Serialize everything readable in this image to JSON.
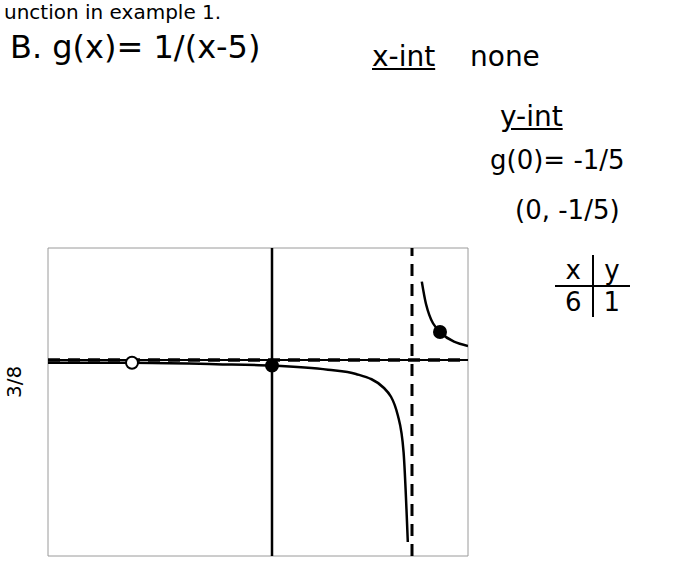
{
  "chart_data": {
    "type": "line",
    "title": "B. g(x)= 1/(x-5)",
    "header": "unction in example 1.",
    "annotations": [
      "x-int",
      "none",
      "y-int",
      "g(0)= -1/5",
      "(0, -1/5)",
      "3/8"
    ],
    "table": {
      "columns": [
        "x",
        "y"
      ],
      "rows": [
        [
          6,
          1
        ]
      ]
    },
    "xlim": [
      -8,
      7
    ],
    "ylim": [
      -7,
      4
    ],
    "xticks": [
      -8,
      -7,
      -6,
      -5,
      -4,
      -3,
      -2,
      -1,
      0,
      1,
      2,
      3,
      4,
      5,
      6,
      7
    ],
    "yticks": [
      -7,
      -6,
      -5,
      -4,
      -3,
      -2,
      -1,
      0,
      1,
      2,
      3,
      4
    ],
    "grid": true,
    "tick_labels": false,
    "asymptotes": [
      {
        "axis": "x",
        "value": 5,
        "line_style": "dashed"
      },
      {
        "axis": "y",
        "value": 0,
        "line_style": "dashed"
      }
    ],
    "series": [
      {
        "type": "line",
        "color": "#000000",
        "line_style": "solid",
        "x": [
          -8,
          -5,
          -2,
          0,
          2,
          3,
          4,
          4.5,
          4.7,
          4.85
        ],
        "values": [
          -0.1,
          -0.1,
          -0.15,
          -0.2,
          -0.35,
          -0.5,
          -1,
          -2,
          -3.3,
          -6.5
        ]
      },
      {
        "type": "line",
        "color": "#000000",
        "line_style": "solid",
        "x": [
          5.35,
          5.5,
          6,
          7
        ],
        "values": [
          2.8,
          2,
          1,
          0.5
        ]
      },
      {
        "type": "scatter",
        "color": "#000000",
        "marker": "filled circle",
        "x": [
          0,
          6
        ],
        "values": [
          -0.2,
          1
        ]
      },
      {
        "type": "scatter",
        "color": "#000000",
        "marker": "open circle",
        "x": [
          -5
        ],
        "values": [
          -0.1
        ]
      }
    ]
  }
}
